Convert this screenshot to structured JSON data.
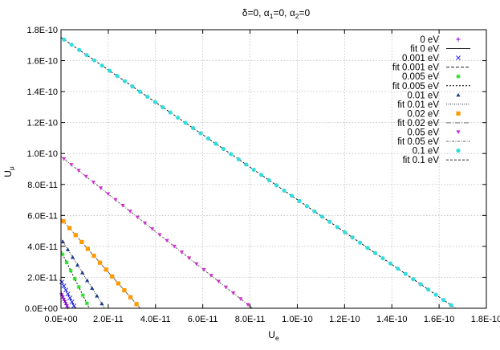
{
  "chart_data": {
    "type": "line",
    "title": "δ=0, α1=0, α2=0",
    "xlabel": "Ue",
    "ylabel": "Uμ",
    "xlim": [
      0,
      1.8e-10
    ],
    "ylim": [
      0,
      1.8e-10
    ],
    "xticks": [
      "0.0E+00",
      "2.0E-11",
      "4.0E-11",
      "6.0E-11",
      "8.0E-11",
      "1.0E-10",
      "1.2E-10",
      "1.4E-10",
      "1.6E-10",
      "1.8E-10"
    ],
    "yticks": [
      "0.0E+00",
      "2.0E-11",
      "4.0E-11",
      "6.0E-11",
      "8.0E-11",
      "1.0E-10",
      "1.2E-10",
      "1.4E-10",
      "1.6E-10",
      "1.8E-10"
    ],
    "grid": true,
    "legend_position": "top-right",
    "series": [
      {
        "name": "0 eV",
        "marker": "plus",
        "color": "#9400d3",
        "fit_name": "fit 0 eV",
        "fit_color": "#000000",
        "fit_dash": "none",
        "x_intercept": 3e-12,
        "y_intercept": 1e-11
      },
      {
        "name": "0.001 eV",
        "marker": "cross",
        "color": "#2020ff",
        "fit_name": "fit 0.001 eV",
        "fit_color": "#000000",
        "fit_dash": "4 2",
        "x_intercept": 6e-12,
        "y_intercept": 1.8e-11
      },
      {
        "name": "0.005 eV",
        "marker": "star",
        "color": "#20e020",
        "fit_name": "fit 0.005 eV",
        "fit_color": "#000000",
        "fit_dash": "2 2",
        "x_intercept": 1.2e-11,
        "y_intercept": 3.7e-11
      },
      {
        "name": "0.01 eV",
        "marker": "triangle",
        "color": "#1a3a8a",
        "fit_name": "fit 0.01 eV",
        "fit_color": "#000000",
        "fit_dash": "1 1.5",
        "x_intercept": 1.85e-11,
        "y_intercept": 4.5e-11
      },
      {
        "name": "0.02 eV",
        "marker": "square",
        "color": "#ff9900",
        "fit_name": "fit 0.02 eV",
        "fit_color": "#555555",
        "fit_dash": "6 2 1 2",
        "x_intercept": 3.35e-11,
        "y_intercept": 5.8e-11
      },
      {
        "name": "0.05 eV",
        "marker": "invtriangle",
        "color": "#cc33cc",
        "fit_name": "fit 0.05 eV",
        "fit_color": "#555555",
        "fit_dash": "3 1.5 1 1.5",
        "x_intercept": 8.1e-11,
        "y_intercept": 9.8e-11
      },
      {
        "name": "0.1 eV",
        "marker": "circle",
        "color": "#33dddd",
        "fit_name": "fit 0.1 eV",
        "fit_color": "#000000",
        "fit_dash": "3 2",
        "x_intercept": 1.67e-10,
        "y_intercept": 1.75e-10
      }
    ]
  }
}
